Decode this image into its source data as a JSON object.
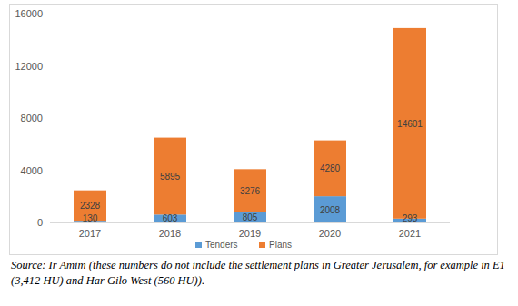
{
  "chart_data": {
    "type": "bar",
    "stacked": true,
    "categories": [
      "2017",
      "2018",
      "2019",
      "2020",
      "2021"
    ],
    "series": [
      {
        "name": "Tenders",
        "color": "#5b9bd5",
        "values": [
          130,
          603,
          805,
          2008,
          293
        ]
      },
      {
        "name": "Plans",
        "color": "#ed7d31",
        "values": [
          2328,
          5895,
          3276,
          4280,
          14601
        ]
      }
    ],
    "ylim": [
      0,
      16000
    ],
    "yticks": [
      0,
      4000,
      8000,
      12000,
      16000
    ],
    "grid": false,
    "legend": "bottom",
    "data_labels": true,
    "annotations": [
      "Source: Ir Amim (these numbers do not include the settlement plans in Greater Jerusalem, for example in E1 (3,412 HU) and Har Gilo West (560 HU))."
    ]
  }
}
